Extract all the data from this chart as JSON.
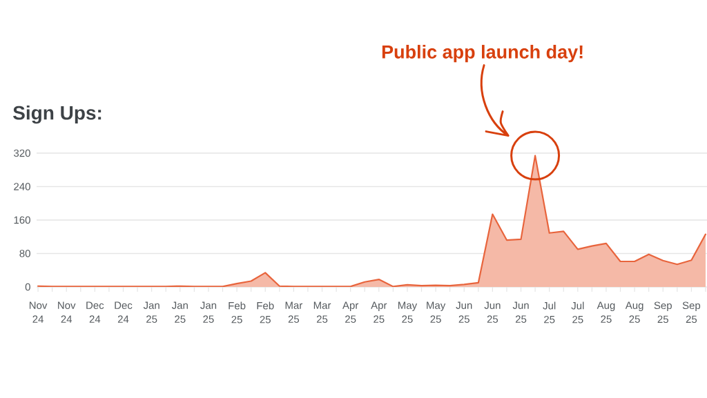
{
  "chart_data": {
    "type": "area",
    "title": "Sign Ups:",
    "categories": [
      "Nov 24",
      null,
      "Nov 24",
      null,
      "Dec 24",
      null,
      "Dec 24",
      null,
      "Jan 25",
      null,
      "Jan 25",
      null,
      "Jan 25",
      null,
      "Feb 25",
      null,
      "Feb 25",
      null,
      "Mar 25",
      null,
      "Mar 25",
      null,
      "Apr 25",
      null,
      "Apr 25",
      null,
      "May 25",
      null,
      "May 25",
      null,
      "Jun 25",
      null,
      "Jun 25",
      null,
      "Jun 25",
      null,
      "Jul 25",
      null,
      "Jul 25",
      null,
      "Aug 25",
      null,
      "Aug 25",
      null,
      "Sep 25",
      null,
      "Sep 25",
      null
    ],
    "values": [
      2,
      1,
      1,
      1,
      1,
      1,
      1,
      1,
      1,
      1,
      2,
      1,
      1,
      1,
      8,
      14,
      34,
      2,
      1,
      1,
      1,
      1,
      1,
      12,
      18,
      1,
      5,
      3,
      4,
      3,
      6,
      10,
      174,
      112,
      114,
      314,
      129,
      133,
      90,
      98,
      104,
      61,
      61,
      78,
      63,
      54,
      64,
      126
    ],
    "color": "#e8643c",
    "ylim": [
      0,
      320
    ],
    "yticks": [
      0,
      80,
      160,
      240,
      320
    ],
    "grid": "y",
    "annotations": [
      "Public app launch day!"
    ]
  }
}
